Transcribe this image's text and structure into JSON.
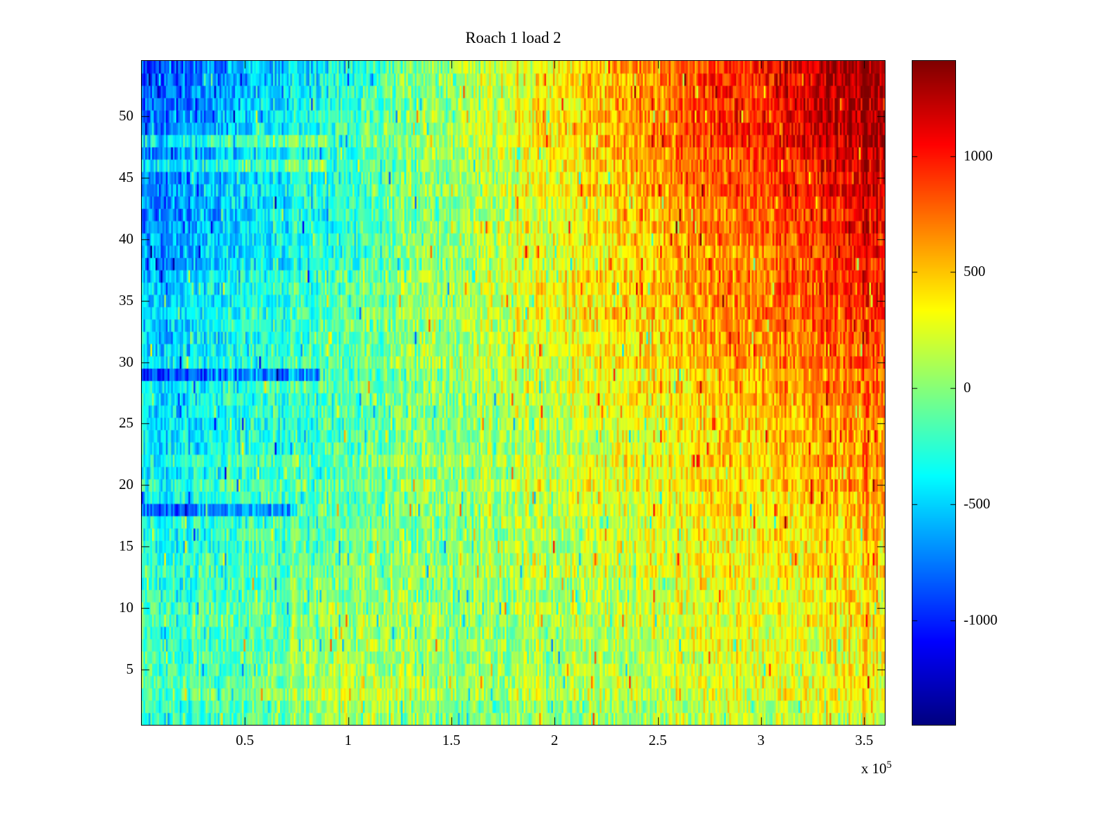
{
  "chart_data": {
    "type": "heatmap",
    "title": "Roach 1 load 2",
    "xlabel": "",
    "ylabel": "",
    "x_range": [
      0,
      360000
    ],
    "y_range": [
      0.5,
      54.5
    ],
    "rows": 54,
    "x_tick_values": [
      50000,
      100000,
      150000,
      200000,
      250000,
      300000,
      350000
    ],
    "x_tick_labels": [
      "0.5",
      "1",
      "1.5",
      "2",
      "2.5",
      "3",
      "3.5"
    ],
    "x_multiplier_prefix": "x 10",
    "x_multiplier_exponent": "5",
    "y_tick_values": [
      5,
      10,
      15,
      20,
      25,
      30,
      35,
      40,
      45,
      50
    ],
    "y_tick_labels": [
      "5",
      "10",
      "15",
      "20",
      "25",
      "30",
      "35",
      "40",
      "45",
      "50"
    ],
    "colormap": "jet",
    "clim": [
      -1450,
      1410
    ],
    "colorbar_tick_values": [
      1000,
      500,
      0,
      -500,
      -1000
    ],
    "colorbar_tick_labels": [
      "1000",
      "500",
      "0",
      "-500",
      "-1000"
    ],
    "value_grid_note": "Approximate mean values read from the image on a coarse grid; first band is the top of the plot (y rows 50-54), bottom band is y rows 1-5.",
    "value_grid_row_bands": [
      "50-54",
      "44-49",
      "39-43",
      "33-38",
      "28-32",
      "23-27",
      "17-22",
      "12-16",
      "6-11",
      "1-5"
    ],
    "value_grid_x_centers": [
      15000,
      45000,
      75000,
      105000,
      135000,
      165000,
      195000,
      225000,
      255000,
      285000,
      315000,
      345000
    ],
    "value_grid": [
      [
        -770,
        -580,
        -390,
        -200,
        -10,
        180,
        370,
        560,
        750,
        940,
        1130,
        1320
      ],
      [
        -690,
        -520,
        -350,
        -180,
        -10,
        160,
        330,
        500,
        670,
        840,
        1010,
        1180
      ],
      [
        -610,
        -460,
        -310,
        -160,
        -10,
        140,
        290,
        440,
        590,
        740,
        900,
        1050
      ],
      [
        -540,
        -400,
        -270,
        -140,
        -10,
        120,
        260,
        390,
        520,
        650,
        790,
        920
      ],
      [
        -470,
        -350,
        -240,
        -120,
        -10,
        110,
        220,
        340,
        450,
        570,
        680,
        790
      ],
      [
        -400,
        -300,
        -200,
        -100,
        -10,
        90,
        190,
        290,
        390,
        480,
        580,
        680
      ],
      [
        -330,
        -250,
        -170,
        -90,
        -10,
        80,
        160,
        240,
        320,
        410,
        490,
        570
      ],
      [
        -280,
        -210,
        -140,
        -70,
        0,
        60,
        130,
        200,
        270,
        340,
        400,
        470
      ],
      [
        -220,
        -170,
        -60,
        40,
        10,
        50,
        110,
        160,
        220,
        270,
        330,
        380
      ],
      [
        -190,
        -140,
        -20,
        140,
        60,
        40,
        90,
        130,
        180,
        230,
        270,
        320
      ]
    ],
    "gradient": {
      "x_zero_norm": 0.38,
      "slope_min": 500,
      "slope_max": 2400,
      "gamma": 1.3
    },
    "patches": [
      {
        "x_center_norm": 0.28,
        "x_sigma_norm": 0.09,
        "max_row": 17,
        "amplitude": 260
      }
    ],
    "row_anomalies": [
      {
        "row": 18,
        "offset": -450,
        "x_extent_norm": 0.21
      },
      {
        "row": 29,
        "offset": -400,
        "x_extent_norm": 0.24
      },
      {
        "row": 46,
        "offset": 300,
        "x_extent_norm": 0.25
      },
      {
        "row": 48,
        "offset": 280,
        "x_extent_norm": 0.25
      }
    ],
    "noise": {
      "cell": 260,
      "column": 130,
      "row": 55,
      "spike_probability": 0.055,
      "spike_amplitude": 620
    },
    "render": {
      "seed": 7,
      "columns": 430
    },
    "legend_position": "colorbar-right",
    "grid": "off"
  }
}
